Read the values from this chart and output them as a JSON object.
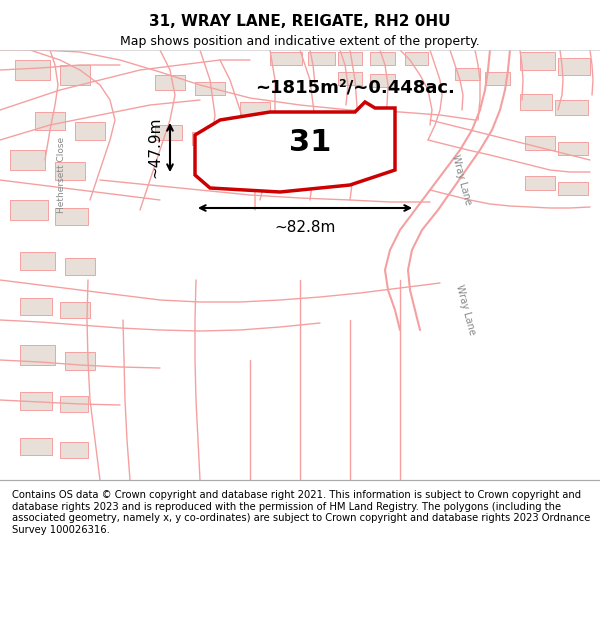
{
  "title": "31, WRAY LANE, REIGATE, RH2 0HU",
  "subtitle": "Map shows position and indicative extent of the property.",
  "footer": "Contains OS data © Crown copyright and database right 2021. This information is subject to Crown copyright and database rights 2023 and is reproduced with the permission of HM Land Registry. The polygons (including the associated geometry, namely x, y co-ordinates) are subject to Crown copyright and database rights 2023 Ordnance Survey 100026316.",
  "area_label": "~1815m²/~0.448ac.",
  "width_label": "~82.8m",
  "height_label": "~47.9m",
  "plot_number": "31",
  "map_bg": "#ffffff",
  "header_bg": "#ffffff",
  "footer_bg": "#f0f0f0",
  "road_color": "#f5a0a0",
  "building_color": "#e8e0d8",
  "highlight_color": "#cc0000",
  "street_label": "Wray Lane",
  "street_label2": "Wray Lane",
  "left_street": "Hethersett Close",
  "fig_width": 6.0,
  "fig_height": 6.25
}
